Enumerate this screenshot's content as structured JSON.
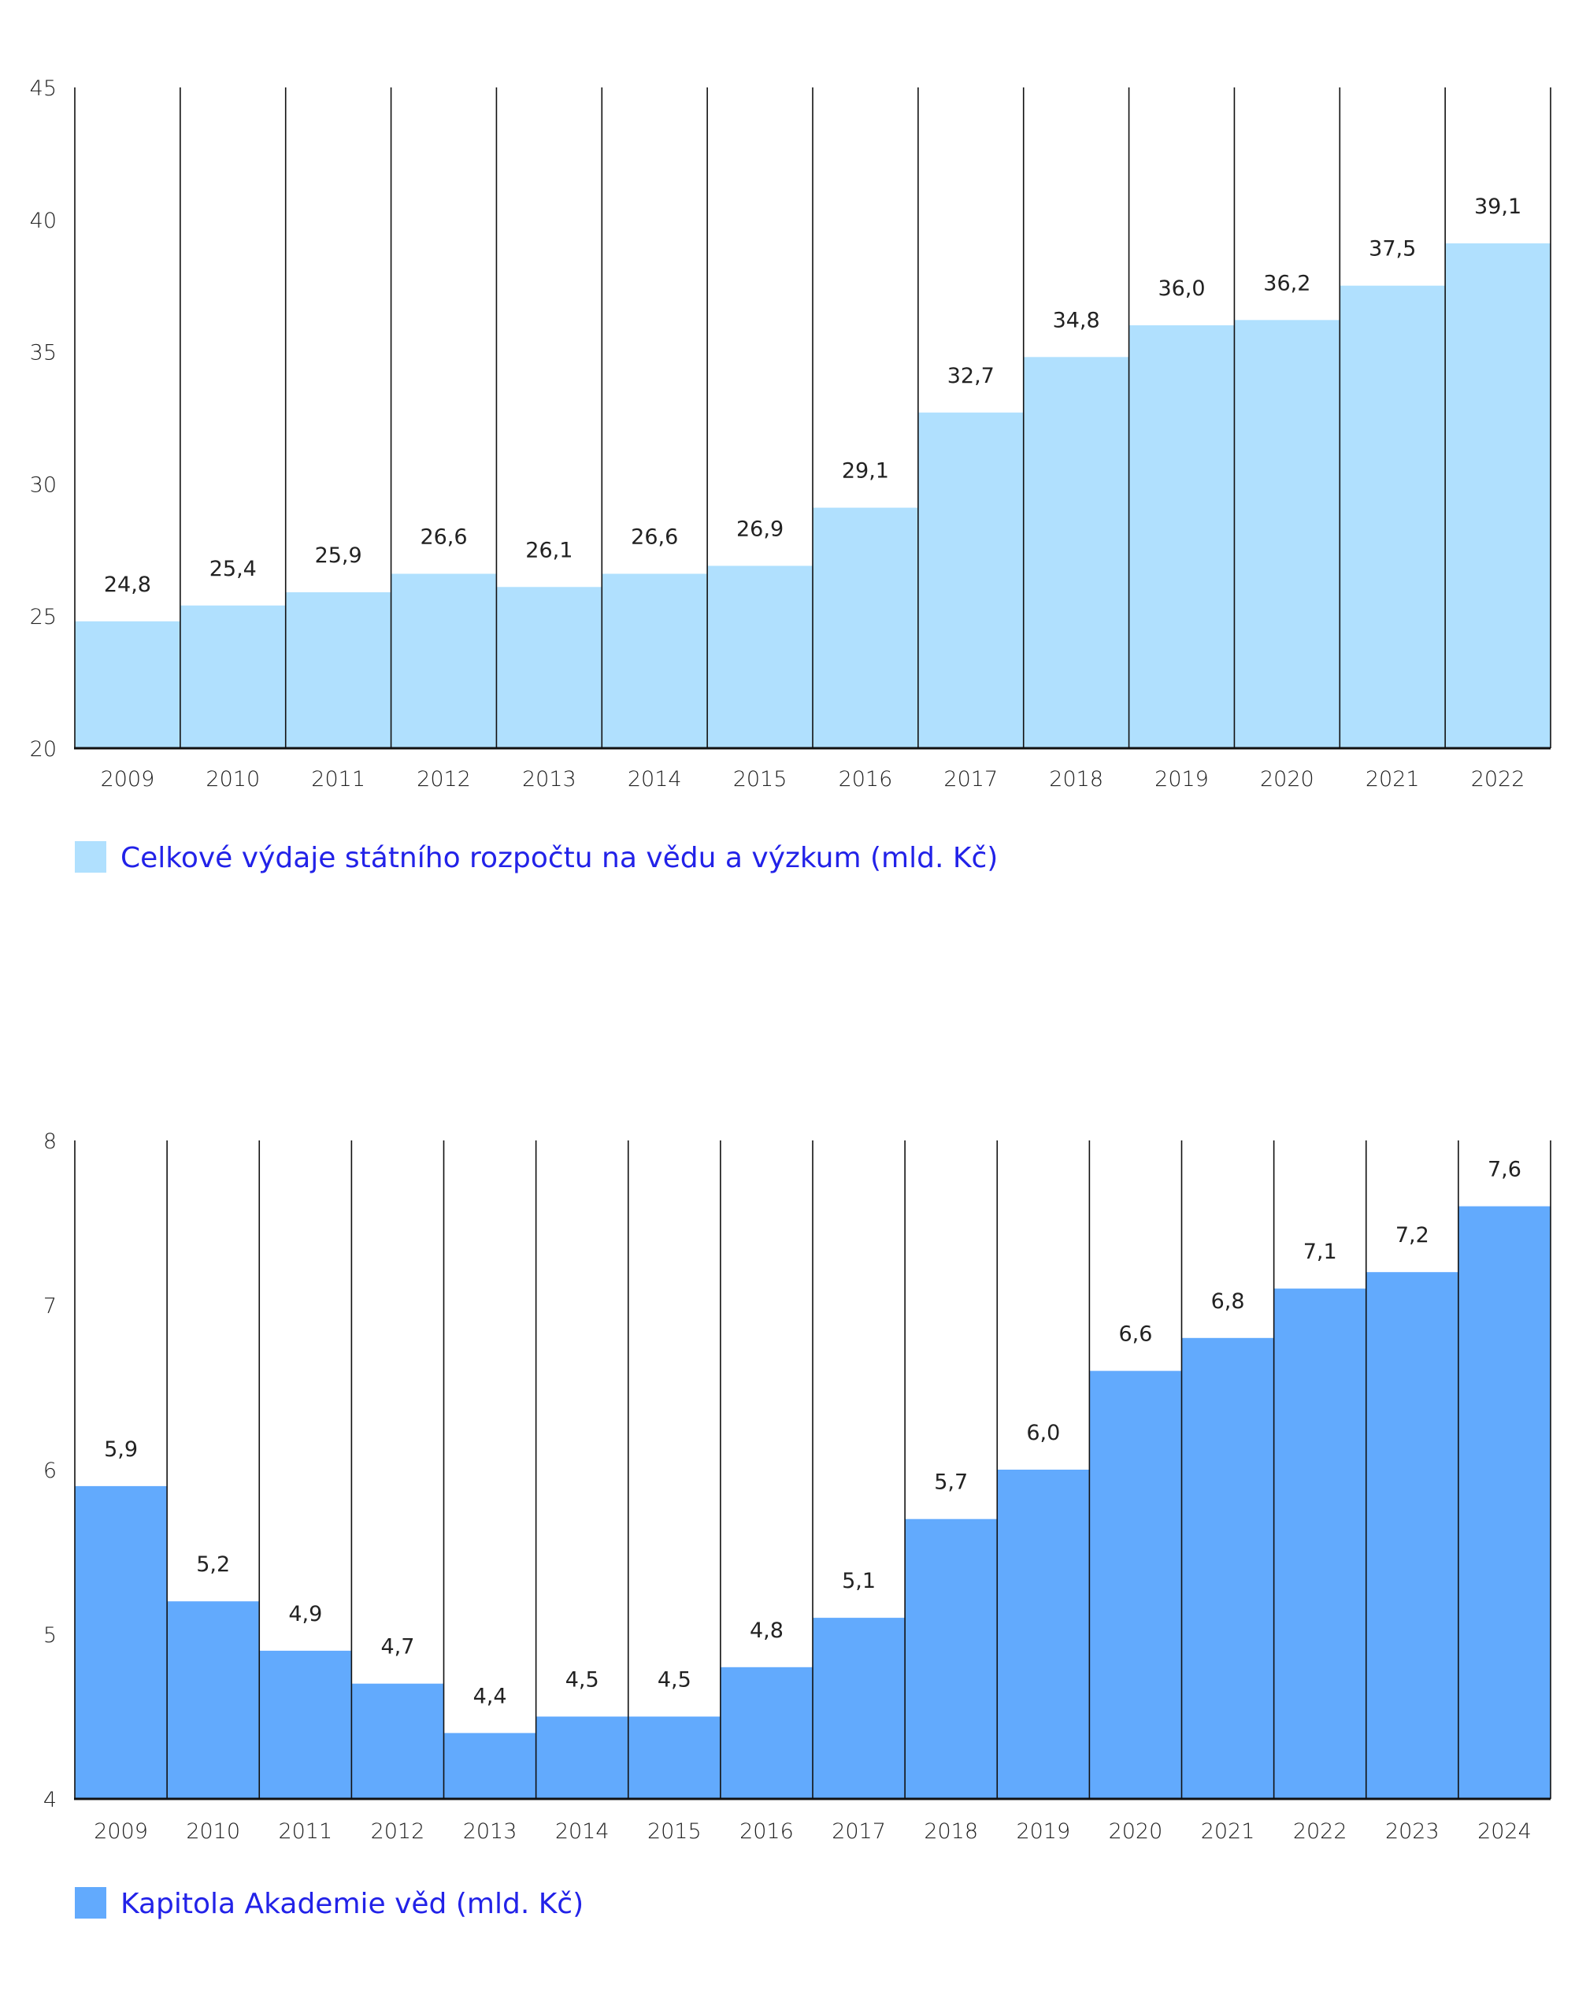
{
  "chart_data": [
    {
      "type": "bar",
      "categories": [
        "2009",
        "2010",
        "2011",
        "2012",
        "2013",
        "2014",
        "2015",
        "2016",
        "2017",
        "2018",
        "2019",
        "2020",
        "2021",
        "2022"
      ],
      "values": [
        24.8,
        25.4,
        25.9,
        26.6,
        26.1,
        26.6,
        26.9,
        29.1,
        32.7,
        34.8,
        36.0,
        36.2,
        37.5,
        39.1
      ],
      "data_labels": [
        "24,8",
        "25,4",
        "25,9",
        "26,6",
        "26,1",
        "26,6",
        "26,9",
        "29,1",
        "32,7",
        "34,8",
        "36,0",
        "36,2",
        "37,5",
        "39,1"
      ],
      "ylim": [
        20,
        45
      ],
      "yticks": [
        "20",
        "25",
        "30",
        "35",
        "40",
        "45"
      ],
      "grid": false,
      "legend": {
        "placement": "bottom-left",
        "entries": [
          "Celkové výdaje státního rozpočtu na vědu a výzkum (mld. Kč)"
        ]
      },
      "color": "#b0e0fe"
    },
    {
      "type": "bar",
      "categories": [
        "2009",
        "2010",
        "2011",
        "2012",
        "2013",
        "2014",
        "2015",
        "2016",
        "2017",
        "2018",
        "2019",
        "2020",
        "2021",
        "2022",
        "2023",
        "2024"
      ],
      "values": [
        5.9,
        5.2,
        4.9,
        4.7,
        4.4,
        4.5,
        4.5,
        4.8,
        5.1,
        5.7,
        6.0,
        6.6,
        6.8,
        7.1,
        7.2,
        7.6
      ],
      "data_labels": [
        "5,9",
        "5,2",
        "4,9",
        "4,7",
        "4,4",
        "4,5",
        "4,5",
        "4,8",
        "5,1",
        "5,7",
        "6,0",
        "6,6",
        "6,8",
        "7,1",
        "7,2",
        "7,6"
      ],
      "ylim": [
        4,
        8
      ],
      "yticks": [
        "4",
        "5",
        "6",
        "7",
        "8"
      ],
      "grid": false,
      "legend": {
        "placement": "bottom-left",
        "entries": [
          "Kapitola Akademie věd (mld. Kč)"
        ]
      },
      "color": "#62aafd"
    }
  ],
  "colors": {
    "legend_text": "#2222e8",
    "axis": "#111111"
  }
}
